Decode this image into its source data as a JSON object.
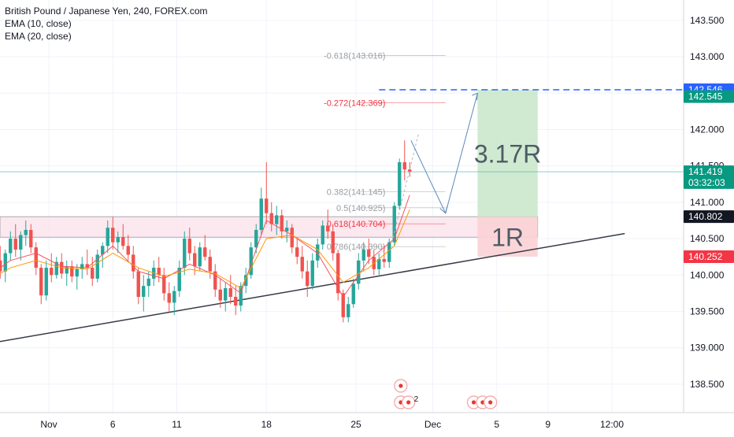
{
  "chart_data": {
    "type": "candlestick",
    "title": "British Pound / Japanese Yen, 240, FOREX.com",
    "indicators": [
      "EMA (10, close)",
      "EMA (20, close)"
    ],
    "y_axis": {
      "range": [
        138.2,
        143.75
      ],
      "ticks": [
        "138.500",
        "139.000",
        "139.500",
        "140.000",
        "140.500",
        "141.000",
        "141.500",
        "142.000",
        "142.500",
        "143.000",
        "143.500"
      ],
      "position": "right"
    },
    "x_axis": {
      "ticks": [
        {
          "label": "Nov",
          "day": 1
        },
        {
          "label": "6",
          "day": 6
        },
        {
          "label": "11",
          "day": 11
        },
        {
          "label": "18",
          "day": 18
        },
        {
          "label": "25",
          "day": 25
        },
        {
          "label": "Dec",
          "day": 31
        },
        {
          "label": "5",
          "day": 36
        },
        {
          "label": "9",
          "day": 40
        },
        {
          "label": "12:00",
          "day": 45
        }
      ]
    },
    "price_labels": [
      {
        "value": "142.546",
        "color": "#2962ff",
        "price": 142.546
      },
      {
        "value": "142.545",
        "color": "#089981",
        "price": 142.452
      },
      {
        "value": "141.419",
        "color": "#089981",
        "price": 141.419
      },
      {
        "value": "03:32:03",
        "color": "#089981",
        "price": 141.27
      },
      {
        "value": "140.802",
        "color": "#131722",
        "price": 140.802
      },
      {
        "value": "140.252",
        "color": "#f23645",
        "price": 140.252
      }
    ],
    "fibonacci": [
      {
        "label": "-0.618(143.016)",
        "price": 143.016,
        "color": "#9b9ea3"
      },
      {
        "label": "-0.272(142.369)",
        "price": 142.369,
        "color": "#f23645"
      },
      {
        "label": "0.382(141.145)",
        "price": 141.145,
        "color": "#9b9ea3"
      },
      {
        "label": "0.5(140.925)",
        "price": 140.925,
        "color": "#9b9ea3"
      },
      {
        "label": "0.618(140.704)",
        "price": 140.704,
        "color": "#f23645"
      },
      {
        "label": "0.786(140.390)",
        "price": 140.39,
        "color": "#9b9ea3"
      }
    ],
    "position": {
      "entry": 140.802,
      "target": 142.546,
      "stop": 140.252,
      "reward_label": "3.17R",
      "risk_label": "1R",
      "start_day": 34.5,
      "end_day": 39.2
    },
    "zone": {
      "top": 140.802,
      "bottom": 140.52
    },
    "current_price": 141.419,
    "trendline": {
      "from": {
        "day": -4,
        "price": 139.05
      },
      "to": {
        "day": 46,
        "price": 140.57
      }
    },
    "projection": [
      {
        "day": 29.3,
        "price": 141.85
      },
      {
        "day": 32,
        "price": 140.85
      },
      {
        "day": 34.5,
        "price": 142.5
      }
    ],
    "candles": [
      {
        "day": -4.0,
        "o": 139.7,
        "h": 140.1,
        "l": 139.48,
        "c": 139.9
      },
      {
        "day": -3.6,
        "o": 139.9,
        "h": 140.4,
        "l": 139.8,
        "c": 140.28
      },
      {
        "day": -3.2,
        "o": 140.28,
        "h": 140.55,
        "l": 140.1,
        "c": 140.2
      },
      {
        "day": -2.8,
        "o": 140.2,
        "h": 140.4,
        "l": 139.95,
        "c": 140.05
      },
      {
        "day": -2.4,
        "o": 140.05,
        "h": 140.35,
        "l": 139.9,
        "c": 140.3
      },
      {
        "day": -2.0,
        "o": 140.3,
        "h": 140.6,
        "l": 140.2,
        "c": 140.5
      },
      {
        "day": -1.6,
        "o": 140.5,
        "h": 140.7,
        "l": 140.25,
        "c": 140.35
      },
      {
        "day": -1.2,
        "o": 140.35,
        "h": 140.6,
        "l": 140.2,
        "c": 140.55
      },
      {
        "day": -0.8,
        "o": 140.55,
        "h": 140.75,
        "l": 140.4,
        "c": 140.62
      },
      {
        "day": -0.4,
        "o": 140.62,
        "h": 140.7,
        "l": 140.3,
        "c": 140.38
      },
      {
        "day": 0.0,
        "o": 140.38,
        "h": 140.45,
        "l": 140.0,
        "c": 140.1
      },
      {
        "day": 0.4,
        "o": 140.1,
        "h": 140.15,
        "l": 139.6,
        "c": 139.72
      },
      {
        "day": 0.8,
        "o": 139.72,
        "h": 140.2,
        "l": 139.65,
        "c": 140.1
      },
      {
        "day": 1.2,
        "o": 140.1,
        "h": 140.3,
        "l": 139.9,
        "c": 140.0
      },
      {
        "day": 1.6,
        "o": 140.0,
        "h": 140.25,
        "l": 139.95,
        "c": 140.18
      },
      {
        "day": 2.0,
        "o": 140.18,
        "h": 140.3,
        "l": 139.95,
        "c": 140.02
      },
      {
        "day": 2.4,
        "o": 140.02,
        "h": 140.2,
        "l": 139.85,
        "c": 140.12
      },
      {
        "day": 2.8,
        "o": 140.12,
        "h": 140.2,
        "l": 139.9,
        "c": 139.98
      },
      {
        "day": 3.2,
        "o": 139.98,
        "h": 140.15,
        "l": 139.8,
        "c": 140.08
      },
      {
        "day": 3.6,
        "o": 140.08,
        "h": 140.25,
        "l": 139.95,
        "c": 140.15
      },
      {
        "day": 4.0,
        "o": 140.15,
        "h": 140.35,
        "l": 140.0,
        "c": 140.1
      },
      {
        "day": 4.4,
        "o": 140.1,
        "h": 140.25,
        "l": 139.85,
        "c": 139.95
      },
      {
        "day": 4.8,
        "o": 139.95,
        "h": 140.35,
        "l": 139.9,
        "c": 140.28
      },
      {
        "day": 5.2,
        "o": 140.28,
        "h": 140.45,
        "l": 140.1,
        "c": 140.4
      },
      {
        "day": 5.6,
        "o": 140.4,
        "h": 140.75,
        "l": 140.3,
        "c": 140.65
      },
      {
        "day": 6.0,
        "o": 140.65,
        "h": 140.8,
        "l": 140.35,
        "c": 140.45
      },
      {
        "day": 6.4,
        "o": 140.45,
        "h": 140.6,
        "l": 140.3,
        "c": 140.52
      },
      {
        "day": 6.8,
        "o": 140.52,
        "h": 140.7,
        "l": 140.35,
        "c": 140.4
      },
      {
        "day": 7.2,
        "o": 140.4,
        "h": 140.55,
        "l": 140.2,
        "c": 140.28
      },
      {
        "day": 7.6,
        "o": 140.28,
        "h": 140.4,
        "l": 139.95,
        "c": 140.05
      },
      {
        "day": 8.0,
        "o": 140.05,
        "h": 140.1,
        "l": 139.6,
        "c": 139.7
      },
      {
        "day": 8.4,
        "o": 139.7,
        "h": 140.0,
        "l": 139.5,
        "c": 139.85
      },
      {
        "day": 8.8,
        "o": 139.85,
        "h": 140.05,
        "l": 139.7,
        "c": 139.95
      },
      {
        "day": 9.2,
        "o": 139.95,
        "h": 140.2,
        "l": 139.85,
        "c": 140.1
      },
      {
        "day": 9.6,
        "o": 140.1,
        "h": 140.25,
        "l": 139.9,
        "c": 140.0
      },
      {
        "day": 10.0,
        "o": 140.0,
        "h": 140.1,
        "l": 139.65,
        "c": 139.75
      },
      {
        "day": 10.4,
        "o": 139.75,
        "h": 139.9,
        "l": 139.5,
        "c": 139.62
      },
      {
        "day": 10.8,
        "o": 139.62,
        "h": 139.85,
        "l": 139.45,
        "c": 139.78
      },
      {
        "day": 11.2,
        "o": 139.78,
        "h": 140.2,
        "l": 139.7,
        "c": 140.1
      },
      {
        "day": 11.6,
        "o": 140.1,
        "h": 140.6,
        "l": 140.0,
        "c": 140.5
      },
      {
        "day": 12.0,
        "o": 140.5,
        "h": 140.65,
        "l": 140.2,
        "c": 140.3
      },
      {
        "day": 12.4,
        "o": 140.3,
        "h": 140.4,
        "l": 140.0,
        "c": 140.12
      },
      {
        "day": 12.8,
        "o": 140.12,
        "h": 140.45,
        "l": 140.05,
        "c": 140.38
      },
      {
        "day": 13.2,
        "o": 140.38,
        "h": 140.55,
        "l": 140.2,
        "c": 140.25
      },
      {
        "day": 13.6,
        "o": 140.25,
        "h": 140.35,
        "l": 139.95,
        "c": 140.05
      },
      {
        "day": 14.0,
        "o": 140.05,
        "h": 140.15,
        "l": 139.7,
        "c": 139.8
      },
      {
        "day": 14.4,
        "o": 139.8,
        "h": 139.95,
        "l": 139.55,
        "c": 139.65
      },
      {
        "day": 14.8,
        "o": 139.65,
        "h": 139.9,
        "l": 139.5,
        "c": 139.82
      },
      {
        "day": 15.2,
        "o": 139.82,
        "h": 140.0,
        "l": 139.6,
        "c": 139.7
      },
      {
        "day": 15.6,
        "o": 139.7,
        "h": 139.85,
        "l": 139.45,
        "c": 139.58
      },
      {
        "day": 16.0,
        "o": 139.58,
        "h": 139.9,
        "l": 139.5,
        "c": 139.85
      },
      {
        "day": 16.4,
        "o": 139.85,
        "h": 140.1,
        "l": 139.75,
        "c": 140.0
      },
      {
        "day": 16.8,
        "o": 140.0,
        "h": 140.45,
        "l": 139.95,
        "c": 140.38
      },
      {
        "day": 17.2,
        "o": 140.38,
        "h": 140.7,
        "l": 140.3,
        "c": 140.62
      },
      {
        "day": 17.6,
        "o": 140.62,
        "h": 141.2,
        "l": 140.55,
        "c": 141.05
      },
      {
        "day": 18.0,
        "o": 141.05,
        "h": 141.55,
        "l": 140.7,
        "c": 140.85
      },
      {
        "day": 18.4,
        "o": 140.85,
        "h": 141.0,
        "l": 140.6,
        "c": 140.7
      },
      {
        "day": 18.8,
        "o": 140.7,
        "h": 140.95,
        "l": 140.55,
        "c": 140.82
      },
      {
        "day": 19.2,
        "o": 140.82,
        "h": 140.9,
        "l": 140.5,
        "c": 140.6
      },
      {
        "day": 19.6,
        "o": 140.6,
        "h": 140.75,
        "l": 140.45,
        "c": 140.65
      },
      {
        "day": 20.0,
        "o": 140.65,
        "h": 140.7,
        "l": 140.3,
        "c": 140.38
      },
      {
        "day": 20.4,
        "o": 140.38,
        "h": 140.5,
        "l": 140.15,
        "c": 140.25
      },
      {
        "day": 20.8,
        "o": 140.25,
        "h": 140.4,
        "l": 139.95,
        "c": 140.05
      },
      {
        "day": 21.2,
        "o": 140.05,
        "h": 140.2,
        "l": 139.7,
        "c": 139.85
      },
      {
        "day": 21.6,
        "o": 139.85,
        "h": 140.3,
        "l": 139.8,
        "c": 140.2
      },
      {
        "day": 22.0,
        "o": 140.2,
        "h": 140.5,
        "l": 140.1,
        "c": 140.42
      },
      {
        "day": 22.4,
        "o": 140.42,
        "h": 140.75,
        "l": 140.35,
        "c": 140.68
      },
      {
        "day": 22.8,
        "o": 140.68,
        "h": 140.9,
        "l": 140.5,
        "c": 140.6
      },
      {
        "day": 23.2,
        "o": 140.6,
        "h": 140.7,
        "l": 140.2,
        "c": 140.3
      },
      {
        "day": 23.6,
        "o": 140.3,
        "h": 140.35,
        "l": 139.65,
        "c": 139.75
      },
      {
        "day": 24.0,
        "o": 139.75,
        "h": 139.8,
        "l": 139.35,
        "c": 139.42
      },
      {
        "day": 24.4,
        "o": 139.42,
        "h": 139.7,
        "l": 139.35,
        "c": 139.6
      },
      {
        "day": 24.8,
        "o": 139.6,
        "h": 139.95,
        "l": 139.55,
        "c": 139.88
      },
      {
        "day": 25.2,
        "o": 139.88,
        "h": 140.3,
        "l": 139.8,
        "c": 140.2
      },
      {
        "day": 25.6,
        "o": 140.2,
        "h": 140.45,
        "l": 140.05,
        "c": 140.35
      },
      {
        "day": 26.0,
        "o": 140.35,
        "h": 140.5,
        "l": 140.15,
        "c": 140.25
      },
      {
        "day": 26.4,
        "o": 140.25,
        "h": 140.35,
        "l": 140.0,
        "c": 140.08
      },
      {
        "day": 26.8,
        "o": 140.08,
        "h": 140.3,
        "l": 140.0,
        "c": 140.22
      },
      {
        "day": 27.2,
        "o": 140.22,
        "h": 140.4,
        "l": 140.1,
        "c": 140.18
      },
      {
        "day": 27.6,
        "o": 140.18,
        "h": 140.5,
        "l": 140.1,
        "c": 140.45
      },
      {
        "day": 28.0,
        "o": 140.45,
        "h": 141.0,
        "l": 140.4,
        "c": 140.95
      },
      {
        "day": 28.4,
        "o": 140.95,
        "h": 141.6,
        "l": 140.9,
        "c": 141.55
      },
      {
        "day": 28.8,
        "o": 141.55,
        "h": 141.85,
        "l": 141.3,
        "c": 141.45
      },
      {
        "day": 29.2,
        "o": 141.45,
        "h": 141.55,
        "l": 141.35,
        "c": 141.42
      }
    ],
    "ema10": [
      [
        -4,
        139.95
      ],
      [
        -2,
        140.2
      ],
      [
        0,
        140.3
      ],
      [
        2,
        140.12
      ],
      [
        4,
        140.1
      ],
      [
        6,
        140.4
      ],
      [
        8,
        140.05
      ],
      [
        10,
        139.95
      ],
      [
        12,
        140.15
      ],
      [
        14,
        140.0
      ],
      [
        16,
        139.75
      ],
      [
        18,
        140.75
      ],
      [
        20,
        140.55
      ],
      [
        22,
        140.3
      ],
      [
        24,
        139.7
      ],
      [
        26,
        140.2
      ],
      [
        28,
        140.5
      ],
      [
        29.2,
        141.1
      ]
    ],
    "ema20": [
      [
        -4,
        139.9
      ],
      [
        -2,
        140.1
      ],
      [
        0,
        140.2
      ],
      [
        2,
        140.1
      ],
      [
        4,
        140.08
      ],
      [
        6,
        140.3
      ],
      [
        8,
        140.1
      ],
      [
        10,
        139.98
      ],
      [
        12,
        140.08
      ],
      [
        14,
        140.02
      ],
      [
        16,
        139.82
      ],
      [
        18,
        140.5
      ],
      [
        20,
        140.55
      ],
      [
        22,
        140.35
      ],
      [
        24,
        139.9
      ],
      [
        26,
        140.1
      ],
      [
        28,
        140.4
      ],
      [
        29.2,
        140.9
      ]
    ],
    "events": [
      {
        "day": 28.5,
        "row": "upper",
        "label": ""
      },
      {
        "day": 28.5,
        "row": "lower",
        "label": "6"
      },
      {
        "day": 29.1,
        "row": "lower",
        "label": "2"
      },
      {
        "day": 34.2,
        "row": "lower",
        "label": ""
      },
      {
        "day": 34.9,
        "row": "lower",
        "label": ""
      },
      {
        "day": 35.5,
        "row": "lower",
        "label": ""
      }
    ],
    "colors": {
      "up": "#26a69a",
      "down": "#ef5350",
      "ema10": "#f7525f",
      "ema20": "#ff9800",
      "grid": "#f0f3fa",
      "axis_text": "#131722",
      "trend": "#363a45",
      "reward": "#c8e6c9",
      "risk": "#fbd1d5",
      "zone": "#fce4ec",
      "accent_blue": "#2962ff"
    }
  }
}
